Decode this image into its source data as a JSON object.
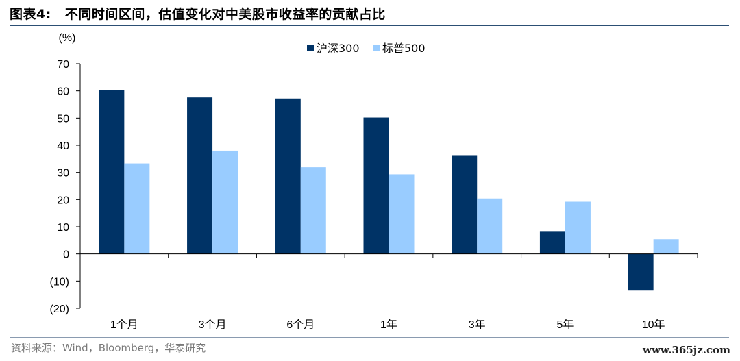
{
  "header": {
    "figure_number": "图表4:",
    "title": "不同时间区间，估值变化对中美股市收益率的贡献占比"
  },
  "footer": {
    "source": "资料来源：Wind，Bloomberg，华泰研究",
    "watermark": "www.365jz.com"
  },
  "chart_data": {
    "type": "bar",
    "unit_label": "(%)",
    "categories": [
      "1个月",
      "3个月",
      "6个月",
      "1年",
      "3年",
      "5年",
      "10年"
    ],
    "series": [
      {
        "name": "沪深300",
        "color": "#003366",
        "values": [
          60.2,
          57.6,
          57.2,
          50.2,
          36.1,
          8.4,
          -13.5
        ]
      },
      {
        "name": "标普500",
        "color": "#99ccff",
        "values": [
          33.3,
          38.0,
          31.9,
          29.3,
          20.4,
          19.2,
          5.4
        ]
      }
    ],
    "ylim": [
      -20,
      70
    ],
    "yticks": [
      70,
      60,
      50,
      40,
      30,
      20,
      10,
      0,
      -10,
      -20
    ],
    "ytick_labels": [
      "70",
      "60",
      "50",
      "40",
      "30",
      "20",
      "10",
      "0",
      "(10)",
      "(20)"
    ],
    "legend_position": "top",
    "grid": false
  }
}
